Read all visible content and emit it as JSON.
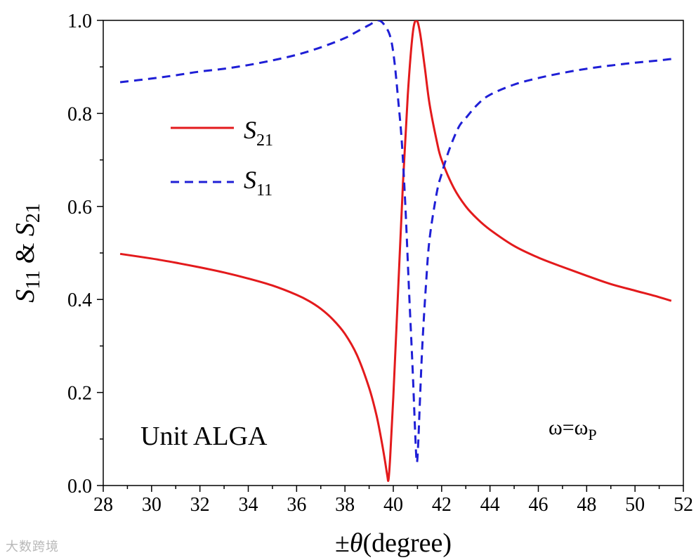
{
  "chart_data": {
    "type": "line",
    "xlabel": {
      "prefix": "±",
      "symbol": "θ",
      "suffix": "(degree)"
    },
    "ylabel": {
      "s1": "S",
      "s1sub": "11",
      "mid": " & ",
      "s2": "S",
      "s2sub": "21"
    },
    "xlim": [
      28,
      52
    ],
    "ylim": [
      0.0,
      1.0
    ],
    "xticks": [
      28,
      30,
      32,
      34,
      36,
      38,
      40,
      42,
      44,
      46,
      48,
      50,
      52
    ],
    "yticks": [
      "0.0",
      "0.2",
      "0.4",
      "0.6",
      "0.8",
      "1.0"
    ],
    "grid": false,
    "legend_position": "upper-left",
    "series": [
      {
        "name": "S21",
        "name_main": "S",
        "name_sub": "21",
        "color": "#e31a1c",
        "style": "solid",
        "points": [
          [
            28.7,
            0.498
          ],
          [
            30,
            0.488
          ],
          [
            31,
            0.479
          ],
          [
            32,
            0.469
          ],
          [
            33,
            0.458
          ],
          [
            34,
            0.445
          ],
          [
            35,
            0.43
          ],
          [
            36,
            0.41
          ],
          [
            36.5,
            0.397
          ],
          [
            37,
            0.38
          ],
          [
            37.5,
            0.357
          ],
          [
            38,
            0.326
          ],
          [
            38.5,
            0.28
          ],
          [
            39,
            0.21
          ],
          [
            39.3,
            0.152
          ],
          [
            39.5,
            0.1
          ],
          [
            39.65,
            0.055
          ],
          [
            39.75,
            0.022
          ],
          [
            39.8,
            0.012
          ],
          [
            39.87,
            0.06
          ],
          [
            40,
            0.19
          ],
          [
            40.2,
            0.42
          ],
          [
            40.4,
            0.65
          ],
          [
            40.6,
            0.84
          ],
          [
            40.8,
            0.97
          ],
          [
            40.95,
            1.0
          ],
          [
            41.1,
            0.975
          ],
          [
            41.3,
            0.9
          ],
          [
            41.5,
            0.82
          ],
          [
            41.8,
            0.74
          ],
          [
            42,
            0.7
          ],
          [
            42.5,
            0.64
          ],
          [
            43,
            0.6
          ],
          [
            43.5,
            0.572
          ],
          [
            44,
            0.55
          ],
          [
            45,
            0.515
          ],
          [
            46,
            0.49
          ],
          [
            47,
            0.47
          ],
          [
            48,
            0.451
          ],
          [
            49,
            0.433
          ],
          [
            50,
            0.419
          ],
          [
            51,
            0.405
          ],
          [
            51.5,
            0.397
          ]
        ]
      },
      {
        "name": "S11",
        "name_main": "S",
        "name_sub": "11",
        "color": "#1f1fd6",
        "style": "dashed",
        "points": [
          [
            28.7,
            0.867
          ],
          [
            30,
            0.875
          ],
          [
            31,
            0.882
          ],
          [
            32,
            0.89
          ],
          [
            33,
            0.896
          ],
          [
            34,
            0.904
          ],
          [
            35,
            0.914
          ],
          [
            36,
            0.926
          ],
          [
            37,
            0.942
          ],
          [
            38,
            0.962
          ],
          [
            38.5,
            0.976
          ],
          [
            39,
            0.99
          ],
          [
            39.4,
            1.0
          ],
          [
            39.7,
            0.985
          ],
          [
            39.9,
            0.96
          ],
          [
            40.05,
            0.91
          ],
          [
            40.2,
            0.83
          ],
          [
            40.35,
            0.74
          ],
          [
            40.5,
            0.6
          ],
          [
            40.65,
            0.42
          ],
          [
            40.8,
            0.25
          ],
          [
            40.9,
            0.12
          ],
          [
            40.97,
            0.05
          ],
          [
            41.03,
            0.09
          ],
          [
            41.1,
            0.18
          ],
          [
            41.2,
            0.3
          ],
          [
            41.35,
            0.43
          ],
          [
            41.5,
            0.53
          ],
          [
            41.8,
            0.63
          ],
          [
            42,
            0.67
          ],
          [
            42.3,
            0.72
          ],
          [
            42.7,
            0.77
          ],
          [
            43,
            0.79
          ],
          [
            43.5,
            0.82
          ],
          [
            44,
            0.84
          ],
          [
            45,
            0.862
          ],
          [
            46,
            0.876
          ],
          [
            47,
            0.887
          ],
          [
            48,
            0.896
          ],
          [
            49,
            0.903
          ],
          [
            50,
            0.909
          ],
          [
            51,
            0.914
          ],
          [
            51.5,
            0.917
          ]
        ]
      }
    ],
    "annotations": [
      {
        "id": "unit",
        "text": "Unit ALGA"
      },
      {
        "id": "omega",
        "main": "ω=ω",
        "sub": "P"
      }
    ]
  },
  "watermark": {
    "text": "大数跨境"
  }
}
